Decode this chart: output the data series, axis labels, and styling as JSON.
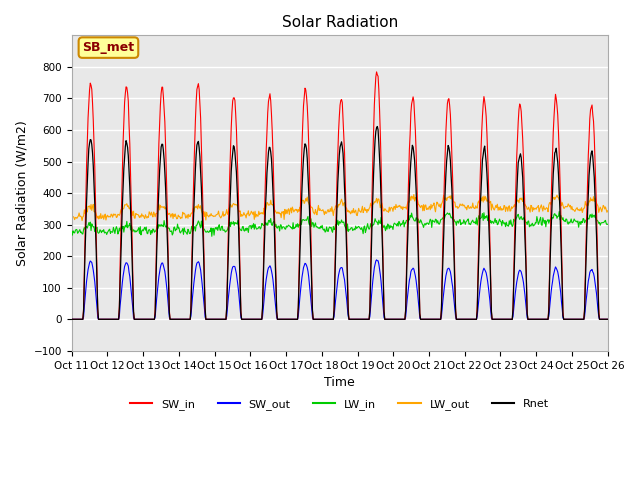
{
  "title": "Solar Radiation",
  "xlabel": "Time",
  "ylabel": "Solar Radiation (W/m2)",
  "ylim": [
    -100,
    900
  ],
  "yticks": [
    -100,
    0,
    100,
    200,
    300,
    400,
    500,
    600,
    700,
    800
  ],
  "xtick_labels": [
    "Oct 11",
    "Oct 12",
    "Oct 13",
    "Oct 14",
    "Oct 15",
    "Oct 16",
    "Oct 17",
    "Oct 18",
    "Oct 19",
    "Oct 20",
    "Oct 21",
    "Oct 22",
    "Oct 23",
    "Oct 24",
    "Oct 25",
    "Oct 26"
  ],
  "colors": {
    "SW_in": "#ff0000",
    "SW_out": "#0000ff",
    "LW_in": "#00cc00",
    "LW_out": "#ffa500",
    "Rnet": "#000000"
  },
  "annotation_text": "SB_met",
  "annotation_bbox": {
    "facecolor": "#ffff99",
    "edgecolor": "#cc8800",
    "boxstyle": "round,pad=0.3"
  },
  "background_color": "#e8e8e8",
  "grid_color": "#ffffff",
  "n_days": 15,
  "hours_per_day": 24,
  "SW_in_peaks": [
    750,
    740,
    735,
    745,
    710,
    710,
    735,
    700,
    790,
    705,
    700,
    700,
    680,
    700,
    680
  ],
  "SW_out_peaks": [
    185,
    180,
    178,
    182,
    170,
    168,
    178,
    165,
    190,
    162,
    162,
    160,
    155,
    162,
    158
  ],
  "LW_in_base": [
    278,
    280,
    282,
    280,
    285,
    290,
    295,
    285,
    290,
    305,
    310,
    308,
    305,
    310,
    308
  ],
  "LW_out_base": [
    325,
    328,
    330,
    328,
    330,
    335,
    345,
    340,
    345,
    355,
    360,
    355,
    350,
    355,
    350
  ],
  "Rnet_peaks": [
    575,
    560,
    555,
    565,
    548,
    545,
    555,
    565,
    610,
    545,
    545,
    545,
    525,
    540,
    530
  ],
  "legend_loc": "lower center",
  "legend_ncol": 5
}
